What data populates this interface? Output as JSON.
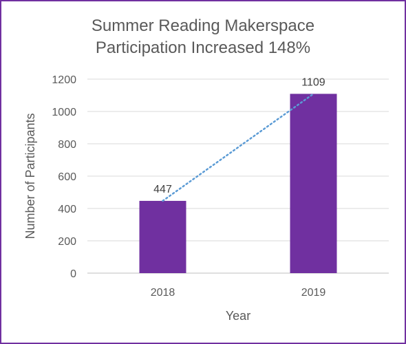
{
  "chart_data": {
    "type": "bar",
    "title_lines": [
      "Summer Reading Makerspace",
      "Participation Increased 148%"
    ],
    "categories": [
      "2018",
      "2019"
    ],
    "values": [
      447,
      1109
    ],
    "data_labels": [
      "447",
      "1109"
    ],
    "xlabel": "Year",
    "ylabel": "Number of Participants",
    "ylim": [
      0,
      1200
    ],
    "yticks": [
      0,
      200,
      400,
      600,
      800,
      1000,
      1200
    ],
    "grid": true,
    "trendline": "dotted linear",
    "colors": {
      "bar": "#7030a0",
      "trendline": "#5b9bd5",
      "border": "#7030a0",
      "grid": "#d9d9d9"
    }
  }
}
